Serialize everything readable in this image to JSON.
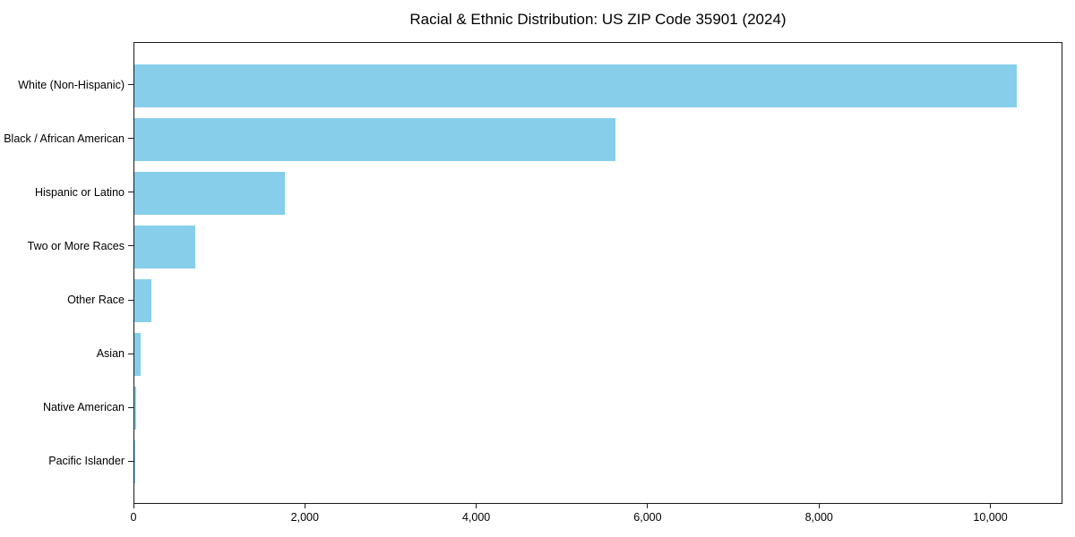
{
  "chart_data": {
    "type": "bar",
    "orientation": "horizontal",
    "title": "Racial & Ethnic Distribution: US ZIP Code 35901 (2024)",
    "categories": [
      "White (Non-Hispanic)",
      "Black / African American",
      "Hispanic or Latino",
      "Two or More Races",
      "Other Race",
      "Asian",
      "Native American",
      "Pacific Islander"
    ],
    "values": [
      10300,
      5610,
      1760,
      710,
      195,
      72,
      20,
      4
    ],
    "xlabel": "",
    "ylabel": "",
    "xlim": [
      0,
      10820
    ],
    "xticks": [
      0,
      2000,
      4000,
      6000,
      8000,
      10000
    ],
    "xtick_labels": [
      "0",
      "2,000",
      "4,000",
      "6,000",
      "8,000",
      "10,000"
    ],
    "bar_color": "#87CEEB",
    "axis_color": "#1a1a1a",
    "grid": false,
    "legend_position": "none"
  }
}
